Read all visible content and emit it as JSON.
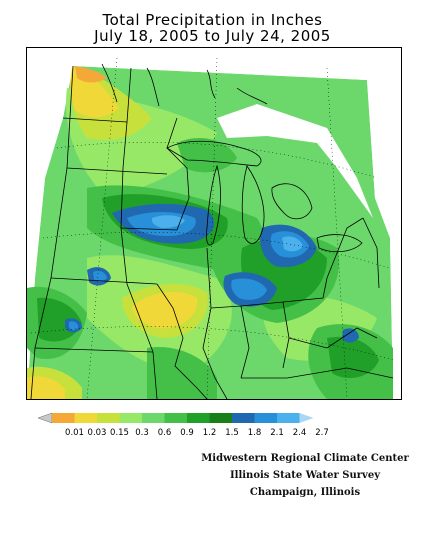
{
  "title": {
    "line1": "Total Precipitation in Inches",
    "line2": "July 18, 2005 to July 24, 2005"
  },
  "legend": {
    "tick_labels": [
      "0.01",
      "0.03",
      "0.15",
      "0.3",
      "0.6",
      "0.9",
      "1.2",
      "1.5",
      "1.8",
      "2.1",
      "2.4",
      "2.7"
    ],
    "colors": [
      "#c8c8c8",
      "#f4a838",
      "#f0d838",
      "#c8e03c",
      "#98e868",
      "#6cd86c",
      "#44c048",
      "#20a028",
      "#188018",
      "#2068b0",
      "#2890d8",
      "#4cb0ec",
      "#a8d8f4"
    ]
  },
  "credits": {
    "line1": "Midwestern Regional Climate Center",
    "line2": "Illinois State Water Survey",
    "line3": "Champaign, Illinois"
  },
  "map": {
    "subject": "Midwest United States precipitation total"
  }
}
